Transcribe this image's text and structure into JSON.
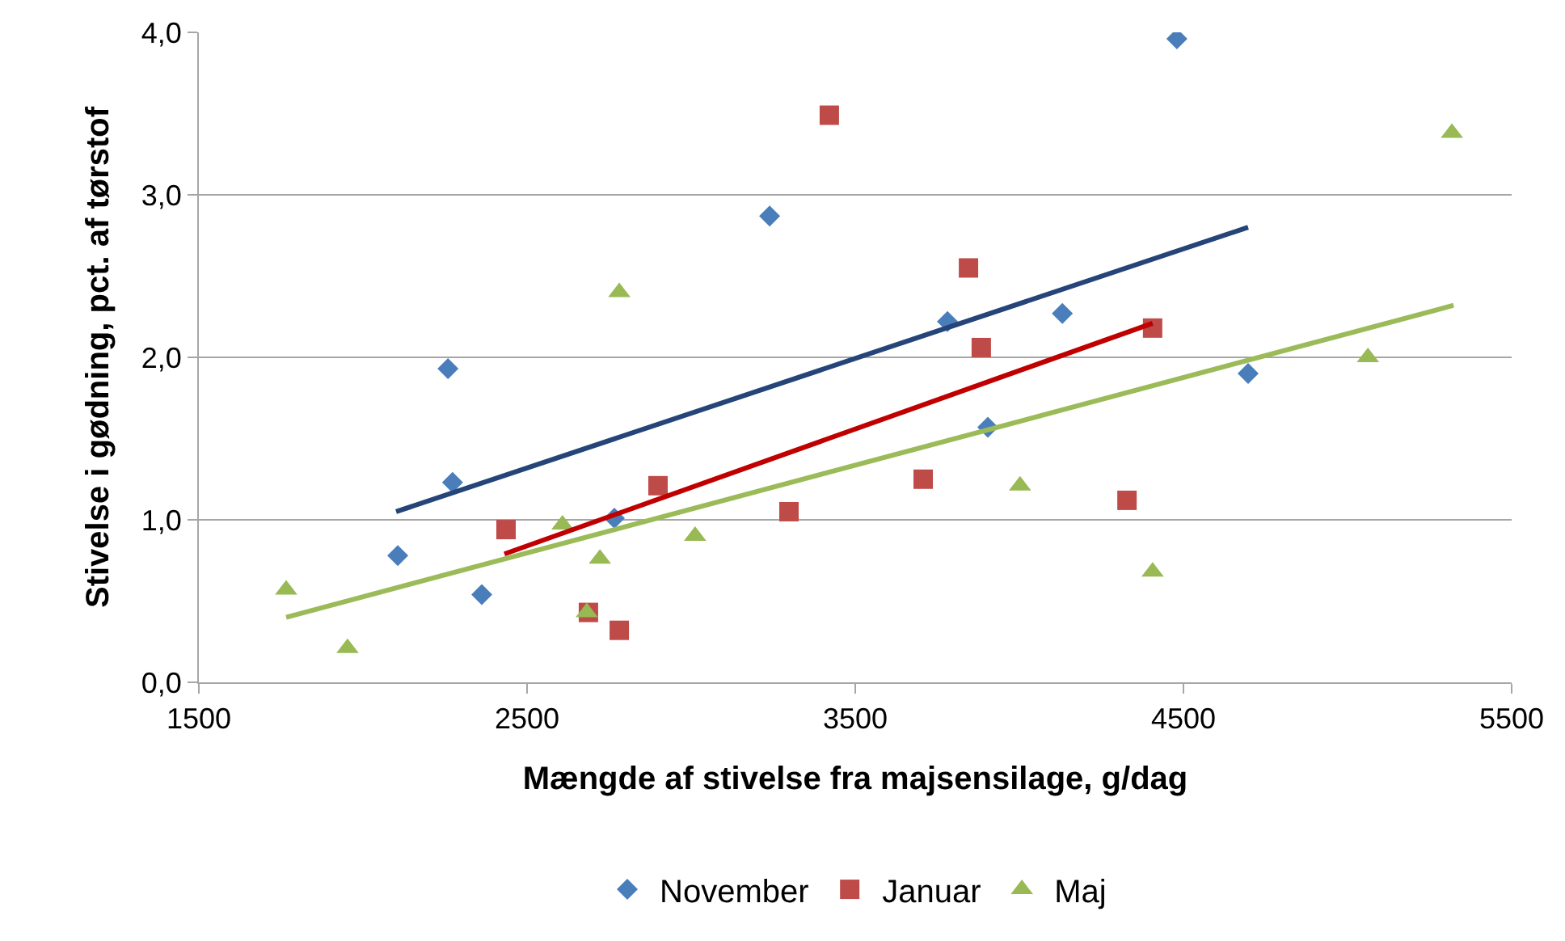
{
  "chart_data": {
    "type": "scatter",
    "xlabel": "Mængde af stivelse fra majsensilage, g/dag",
    "ylabel": "Stivelse i gødning, pct. af tørstof",
    "xlim": [
      1500,
      5500
    ],
    "xticks": [
      1500,
      2500,
      3500,
      4500,
      5500
    ],
    "ylim": [
      0,
      4
    ],
    "yticks": [
      {
        "value": 0,
        "label": "0,0"
      },
      {
        "value": 1,
        "label": "1,0"
      },
      {
        "value": 2,
        "label": "2,0"
      },
      {
        "value": 3,
        "label": "3,0"
      },
      {
        "value": 4,
        "label": "4,0"
      }
    ],
    "grid": "y",
    "legend": "bottom",
    "series": [
      {
        "name": "November",
        "color": "#4a7ebb",
        "marker": "diamond",
        "x": [
          2106,
          2259,
          2273,
          2362,
          2766,
          3239,
          3781,
          3904,
          4131,
          4480,
          4697
        ],
        "values": [
          0.78,
          1.93,
          1.23,
          0.54,
          1.01,
          2.87,
          2.22,
          1.57,
          2.27,
          3.96,
          1.9
        ]
      },
      {
        "name": "Januar",
        "color": "#be4b48",
        "marker": "square",
        "x": [
          2436,
          2687,
          2781,
          2899,
          3298,
          3421,
          3707,
          3845,
          3884,
          4328,
          4406
        ],
        "values": [
          0.94,
          0.43,
          0.32,
          1.21,
          1.05,
          3.49,
          1.25,
          2.55,
          2.06,
          1.12,
          2.18
        ]
      },
      {
        "name": "Maj",
        "color": "#98b954",
        "marker": "triangle",
        "x": [
          1766,
          1953,
          2608,
          2682,
          2722,
          2781,
          3012,
          4002,
          4406,
          5062,
          5318
        ],
        "values": [
          0.57,
          0.21,
          0.97,
          0.43,
          0.76,
          2.4,
          0.9,
          1.21,
          0.68,
          2.0,
          3.38
        ]
      },
      {
        "type": "line",
        "color": "#254478",
        "x": [
          2101,
          4697
        ],
        "values": [
          1.05,
          2.8
        ]
      },
      {
        "type": "line",
        "color": "#c00000",
        "x": [
          2431,
          4406
        ],
        "values": [
          0.79,
          2.21
        ]
      },
      {
        "type": "line",
        "color": "#9bbb59",
        "x": [
          1766,
          5323
        ],
        "values": [
          0.4,
          2.32
        ]
      }
    ]
  }
}
